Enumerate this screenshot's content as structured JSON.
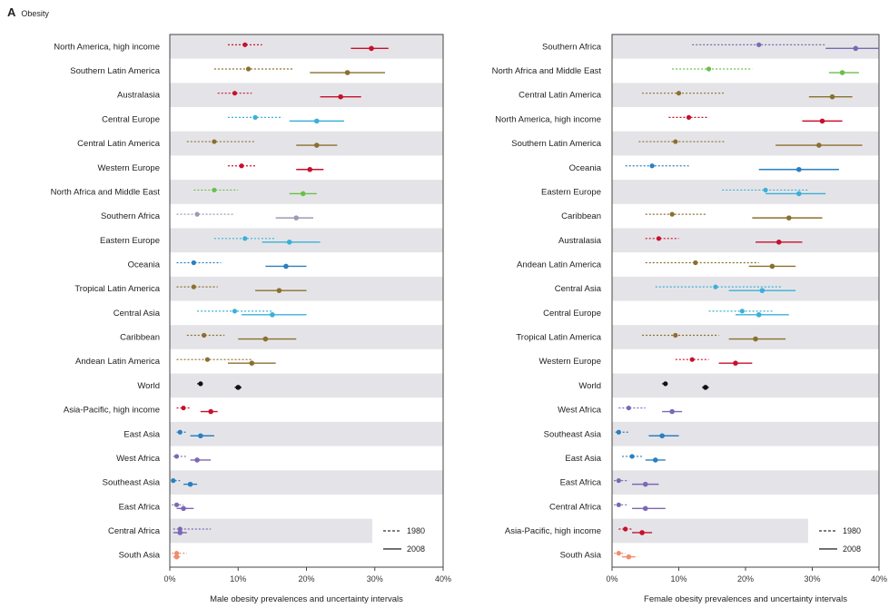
{
  "panel": {
    "letter": "A",
    "title": "Obesity"
  },
  "colors": {
    "row_band": "#e4e4e8",
    "axis": "#444444"
  },
  "chart_data": [
    {
      "type": "scatter",
      "name": "male",
      "xlabel": "Male obesity prevalences and uncertainty intervals",
      "xlim": [
        0,
        40
      ],
      "xticks": [
        0,
        10,
        20,
        30,
        40
      ],
      "xtick_labels": [
        "0%",
        "10%",
        "20%",
        "30%",
        "40%"
      ],
      "legend": {
        "position": "bottom-right",
        "entries": [
          "1980",
          "2008"
        ]
      },
      "rows": [
        {
          "label": "North America, high income",
          "color": "#c8102e",
          "y1980": [
            11,
            8.5,
            13.5
          ],
          "y2008": [
            29.5,
            26.5,
            32
          ]
        },
        {
          "label": "Southern Latin America",
          "color": "#8b6f2e",
          "y1980": [
            11.5,
            6.5,
            18
          ],
          "y2008": [
            26,
            20.5,
            31.5
          ]
        },
        {
          "label": "Australasia",
          "color": "#c8102e",
          "y1980": [
            9.5,
            7,
            12
          ],
          "y2008": [
            25,
            22,
            28
          ]
        },
        {
          "label": "Central Europe",
          "color": "#3bb0d9",
          "y1980": [
            12.5,
            8.5,
            16.5
          ],
          "y2008": [
            21.5,
            17.5,
            25.5
          ]
        },
        {
          "label": "Central Latin America",
          "color": "#8b6f2e",
          "y1980": [
            6.5,
            2.5,
            12.5
          ],
          "y2008": [
            21.5,
            18.5,
            24.5
          ]
        },
        {
          "label": "Western Europe",
          "color": "#c8102e",
          "y1980": [
            10.5,
            8.5,
            12.5
          ],
          "y2008": [
            20.5,
            18.5,
            22.5
          ]
        },
        {
          "label": "North Africa and Middle East",
          "color": "#6abf4b",
          "y1980": [
            6.5,
            3.5,
            10
          ],
          "y2008": [
            19.5,
            17.5,
            21.5
          ]
        },
        {
          "label": "Southern Africa",
          "color": "#9b9bb5",
          "y1980": [
            4,
            1,
            9.5
          ],
          "y2008": [
            18.5,
            15.5,
            21
          ]
        },
        {
          "label": "Eastern Europe",
          "color": "#3bb0d9",
          "y1980": [
            11,
            6.5,
            15.5
          ],
          "y2008": [
            17.5,
            13.5,
            22
          ]
        },
        {
          "label": "Oceania",
          "color": "#2a7fc1",
          "y1980": [
            3.5,
            1,
            7.5
          ],
          "y2008": [
            17,
            14,
            20
          ]
        },
        {
          "label": "Tropical Latin America",
          "color": "#8b6f2e",
          "y1980": [
            3.5,
            1,
            7
          ],
          "y2008": [
            16,
            12.5,
            20
          ]
        },
        {
          "label": "Central Asia",
          "color": "#3bb0d9",
          "y1980": [
            9.5,
            4,
            15
          ],
          "y2008": [
            15,
            10.5,
            20
          ]
        },
        {
          "label": "Caribbean",
          "color": "#8b6f2e",
          "y1980": [
            5,
            2.5,
            8
          ],
          "y2008": [
            14,
            10,
            18.5
          ]
        },
        {
          "label": "Andean Latin America",
          "color": "#8b6f2e",
          "y1980": [
            5.5,
            1,
            12
          ],
          "y2008": [
            12,
            8.5,
            15.5
          ]
        },
        {
          "label": "World",
          "color": "#111111",
          "y1980": [
            4.5,
            4,
            5
          ],
          "y2008": [
            10,
            9.5,
            10.5
          ]
        },
        {
          "label": "Asia-Pacific, high income",
          "color": "#c8102e",
          "y1980": [
            2,
            1,
            3
          ],
          "y2008": [
            6,
            4.5,
            7
          ]
        },
        {
          "label": "East Asia",
          "color": "#2a7fc1",
          "y1980": [
            1.5,
            1,
            2.5
          ],
          "y2008": [
            4.5,
            3,
            6.5
          ]
        },
        {
          "label": "West Africa",
          "color": "#7b68b5",
          "y1980": [
            1,
            0.5,
            2.5
          ],
          "y2008": [
            4,
            3,
            6
          ]
        },
        {
          "label": "Southeast Asia",
          "color": "#2a7fc1",
          "y1980": [
            0.5,
            0.2,
            1.5
          ],
          "y2008": [
            3,
            2,
            4
          ]
        },
        {
          "label": "East Africa",
          "color": "#7b68b5",
          "y1980": [
            1,
            0.3,
            2
          ],
          "y2008": [
            2,
            1,
            3.5
          ]
        },
        {
          "label": "Central Africa",
          "color": "#7b68b5",
          "y1980": [
            1.5,
            0.5,
            6
          ],
          "y2008": [
            1.5,
            0.5,
            2.5
          ]
        },
        {
          "label": "South Asia",
          "color": "#f28c6e",
          "y1980": [
            1,
            0.3,
            2.5
          ],
          "y2008": [
            1,
            0.5,
            1.5
          ]
        }
      ]
    },
    {
      "type": "scatter",
      "name": "female",
      "xlabel": "Female obesity prevalences and uncertainty intervals",
      "xlim": [
        0,
        40
      ],
      "xticks": [
        0,
        10,
        20,
        30,
        40
      ],
      "xtick_labels": [
        "0%",
        "10%",
        "20%",
        "30%",
        "40%"
      ],
      "legend": {
        "position": "bottom-right",
        "entries": [
          "1980",
          "2008"
        ]
      },
      "rows": [
        {
          "label": "Southern Africa",
          "color": "#7b68b5",
          "y1980": [
            22,
            12,
            32
          ],
          "y2008": [
            36.5,
            32,
            40
          ]
        },
        {
          "label": "North Africa and Middle East",
          "color": "#6abf4b",
          "y1980": [
            14.5,
            9,
            21
          ],
          "y2008": [
            34.5,
            32.5,
            37
          ]
        },
        {
          "label": "Central Latin America",
          "color": "#8b6f2e",
          "y1980": [
            10,
            4.5,
            17
          ],
          "y2008": [
            33,
            29.5,
            36
          ]
        },
        {
          "label": "North America, high income",
          "color": "#c8102e",
          "y1980": [
            11.5,
            8.5,
            14.5
          ],
          "y2008": [
            31.5,
            28.5,
            34.5
          ]
        },
        {
          "label": "Southern Latin America",
          "color": "#8b6f2e",
          "y1980": [
            9.5,
            4,
            17
          ],
          "y2008": [
            31,
            24.5,
            37.5
          ]
        },
        {
          "label": "Oceania",
          "color": "#2a7fc1",
          "y1980": [
            6,
            2,
            11.5
          ],
          "y2008": [
            28,
            22,
            34
          ]
        },
        {
          "label": "Eastern Europe",
          "color": "#3bb0d9",
          "y1980": [
            23,
            16.5,
            29.5
          ],
          "y2008": [
            28,
            23,
            32
          ]
        },
        {
          "label": "Caribbean",
          "color": "#8b6f2e",
          "y1980": [
            9,
            5,
            14
          ],
          "y2008": [
            26.5,
            21,
            31.5
          ]
        },
        {
          "label": "Australasia",
          "color": "#c8102e",
          "y1980": [
            7,
            5,
            10
          ],
          "y2008": [
            25,
            21.5,
            28.5
          ]
        },
        {
          "label": "Andean Latin America",
          "color": "#8b6f2e",
          "y1980": [
            12.5,
            5,
            22
          ],
          "y2008": [
            24,
            20.5,
            27.5
          ]
        },
        {
          "label": "Central Asia",
          "color": "#3bb0d9",
          "y1980": [
            15.5,
            6.5,
            25.5
          ],
          "y2008": [
            22.5,
            17.5,
            27.5
          ]
        },
        {
          "label": "Central Europe",
          "color": "#3bb0d9",
          "y1980": [
            19.5,
            14.5,
            24
          ],
          "y2008": [
            22,
            18.5,
            26.5
          ]
        },
        {
          "label": "Tropical Latin America",
          "color": "#8b6f2e",
          "y1980": [
            9.5,
            4.5,
            16
          ],
          "y2008": [
            21.5,
            17.5,
            26
          ]
        },
        {
          "label": "Western Europe",
          "color": "#c8102e",
          "y1980": [
            12,
            9.5,
            14.5
          ],
          "y2008": [
            18.5,
            16,
            21
          ]
        },
        {
          "label": "World",
          "color": "#111111",
          "y1980": [
            8,
            7.5,
            8.5
          ],
          "y2008": [
            14,
            13.5,
            14.5
          ]
        },
        {
          "label": "West Africa",
          "color": "#7b68b5",
          "y1980": [
            2.5,
            1,
            5
          ],
          "y2008": [
            9,
            7.5,
            10.5
          ]
        },
        {
          "label": "Southeast Asia",
          "color": "#2a7fc1",
          "y1980": [
            1,
            0.5,
            2.5
          ],
          "y2008": [
            7.5,
            5.5,
            10
          ]
        },
        {
          "label": "East Asia",
          "color": "#2a7fc1",
          "y1980": [
            3,
            1.5,
            4.5
          ],
          "y2008": [
            6.5,
            5,
            8
          ]
        },
        {
          "label": "East Africa",
          "color": "#7b68b5",
          "y1980": [
            1,
            0.3,
            2.5
          ],
          "y2008": [
            5,
            3,
            7
          ]
        },
        {
          "label": "Central Africa",
          "color": "#7b68b5",
          "y1980": [
            1,
            0.3,
            2.5
          ],
          "y2008": [
            5,
            3,
            8
          ]
        },
        {
          "label": "Asia-Pacific, high income",
          "color": "#c8102e",
          "y1980": [
            2,
            1,
            3
          ],
          "y2008": [
            4.5,
            3,
            6
          ]
        },
        {
          "label": "South Asia",
          "color": "#f28c6e",
          "y1980": [
            1,
            0.3,
            2
          ],
          "y2008": [
            2.5,
            1.5,
            3.5
          ]
        }
      ]
    }
  ]
}
